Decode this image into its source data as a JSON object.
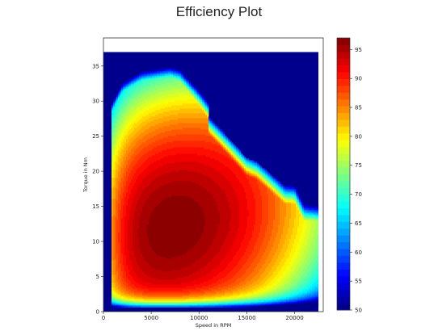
{
  "chart_data": {
    "type": "heatmap",
    "title": "Efficiency Plot",
    "xlabel": "Speed in RPM",
    "ylabel": "Torque in Nm",
    "xlim": [
      0,
      23000
    ],
    "ylim": [
      0,
      39
    ],
    "x_ticks": [
      0,
      5000,
      10000,
      15000,
      20000
    ],
    "y_ticks": [
      0,
      5,
      10,
      15,
      20,
      25,
      30,
      35
    ],
    "colorbar": {
      "range": [
        50,
        97
      ],
      "ticks": [
        50,
        55,
        60,
        65,
        70,
        75,
        80,
        85,
        90,
        95
      ],
      "colormap": "jet",
      "levels": 40
    },
    "data_extent": {
      "x": [
        0,
        22500
      ],
      "y": [
        0,
        37
      ]
    },
    "background_value": 50,
    "operating_envelope": [
      [
        800,
        1.5
      ],
      [
        800,
        30
      ],
      [
        2000,
        33
      ],
      [
        4000,
        34.5
      ],
      [
        7000,
        35
      ],
      [
        8000,
        34.5
      ],
      [
        10000,
        31
      ],
      [
        11000,
        29
      ],
      [
        11000,
        27
      ],
      [
        15000,
        21
      ],
      [
        16000,
        20.5
      ],
      [
        19000,
        17
      ],
      [
        20000,
        17
      ],
      [
        21000,
        14.5
      ],
      [
        22500,
        14.5
      ],
      [
        22500,
        1.5
      ]
    ],
    "peak_efficiency": {
      "value": 97,
      "speed": 7000,
      "torque": 12
    },
    "grid": false
  }
}
